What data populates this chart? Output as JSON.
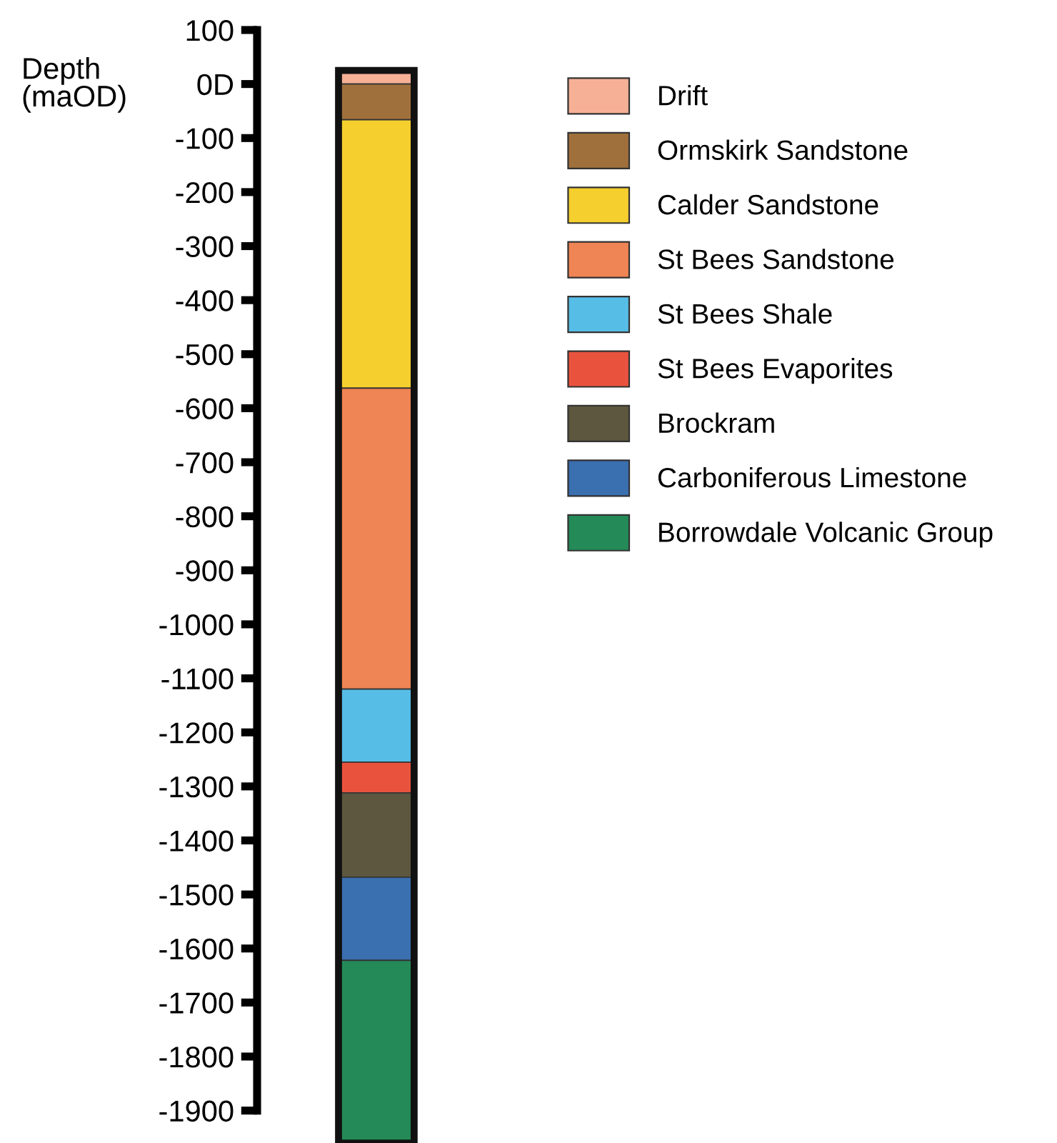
{
  "chart_data": {
    "type": "bar",
    "stacked": true,
    "ylabel": "Depth\n(maOD)",
    "categories": [
      null
    ],
    "series": [
      {
        "name": "Drift",
        "color": "#f6b096",
        "values": [
          25
        ]
      },
      {
        "name": "Ormskirk Sandstone",
        "color": "#a0703c",
        "values": [
          -66
        ]
      },
      {
        "name": "Calder Sandstone",
        "color": "#f5cf2e",
        "values": [
          -497
        ]
      },
      {
        "name": "St Bees Sandstone",
        "color": "#ef8454",
        "values": [
          -557
        ]
      },
      {
        "name": "St Bees Shale",
        "color": "#56bde6",
        "values": [
          -135
        ]
      },
      {
        "name": "St Bees Evaporites",
        "color": "#e9533d",
        "values": [
          -57
        ]
      },
      {
        "name": "Brockram",
        "color": "#5c573e",
        "values": [
          -156
        ]
      },
      {
        "name": "Carboniferous Limestone",
        "color": "#3a6fb0",
        "values": [
          -154
        ]
      },
      {
        "name": "Borrowdale Volcanic Group",
        "color": "#248a57",
        "values": [
          -338
        ]
      }
    ],
    "ylim": [
      -1960,
      100
    ],
    "yticks": [
      100,
      {
        "value": 0,
        "label": "0D"
      },
      -100,
      -200,
      -300,
      -400,
      -500,
      -600,
      -700,
      -800,
      -900,
      -1000,
      -1100,
      -1200,
      -1300,
      -1400,
      -1500,
      -1600,
      -1700,
      -1800,
      -1900
    ],
    "tick_labels": "y",
    "grid": false,
    "legend": "right"
  }
}
